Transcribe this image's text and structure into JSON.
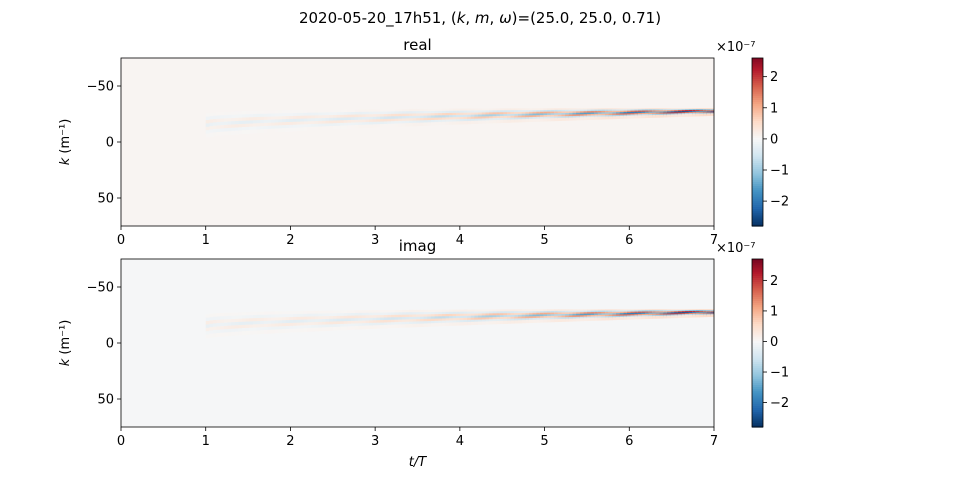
{
  "suptitle": "2020-05-20_17h51, (k, m, ω)=(25.0, 25.0, 0.71)",
  "chart_data": [
    {
      "type": "heatmap",
      "title": "real",
      "xlabel": "",
      "ylabel": "k (m⁻¹)",
      "xlim": [
        0,
        7
      ],
      "ylim": [
        75,
        -75
      ],
      "xticks": [
        "0",
        "1",
        "2",
        "3",
        "4",
        "5",
        "6",
        "7"
      ],
      "yticks": [
        "−50",
        "0",
        "50"
      ],
      "colorbar": {
        "scale_label": "×10⁻⁷",
        "min": -2.8,
        "max": 2.6,
        "ticks": [
          "2",
          "1",
          "0",
          "−1",
          "−2"
        ],
        "colormap": "RdBu_r"
      },
      "background_value": 0.06,
      "bands": [
        {
          "k_start": -15,
          "k_end": -27,
          "amp_start": 0.25,
          "amp_end": 2.6,
          "spacing": 6,
          "sign": 1
        },
        {
          "k_start": -15,
          "k_end": -27,
          "amp_start": 0.2,
          "amp_end": -2.8,
          "spacing": 6,
          "sign": -1
        }
      ]
    },
    {
      "type": "heatmap",
      "title": "imag",
      "xlabel": "t/T",
      "ylabel": "k (m⁻¹)",
      "xlim": [
        0,
        7
      ],
      "ylim": [
        75,
        -75
      ],
      "xticks": [
        "0",
        "1",
        "2",
        "3",
        "4",
        "5",
        "6",
        "7"
      ],
      "yticks": [
        "−50",
        "0",
        "50"
      ],
      "colorbar": {
        "scale_label": "×10⁻⁷",
        "min": -2.8,
        "max": 2.7,
        "ticks": [
          "2",
          "1",
          "0",
          "−1",
          "−2"
        ],
        "colormap": "RdBu_r"
      },
      "background_value": -0.03,
      "bands": [
        {
          "k_start": -15,
          "k_end": -27,
          "amp_start": 0.2,
          "amp_end": 2.7,
          "spacing": 6,
          "sign": 1
        },
        {
          "k_start": -15,
          "k_end": -27,
          "amp_start": 0.2,
          "amp_end": -2.8,
          "spacing": 6,
          "sign": -1
        }
      ]
    }
  ]
}
